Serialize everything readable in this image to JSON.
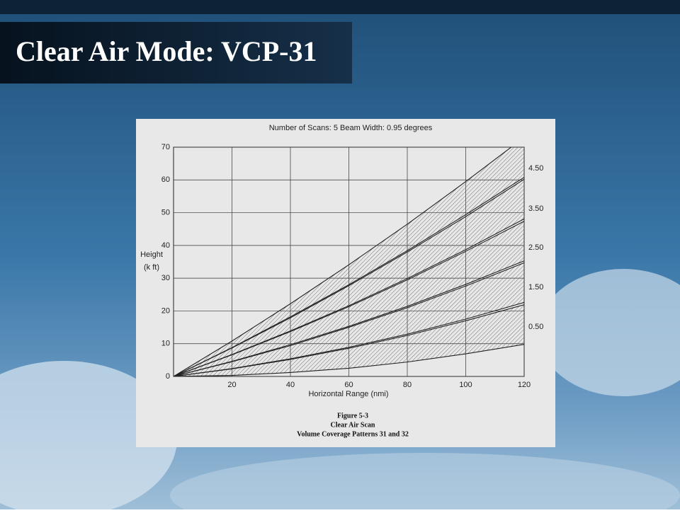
{
  "slide_title": "Clear Air Mode: VCP-31",
  "chart_data": {
    "type": "band",
    "title": "Number of Scans: 5   Beam Width: 0.95 degrees",
    "xlabel": "Horizontal Range (nmi)",
    "ylabel": [
      "Height",
      "(k ft)"
    ],
    "caption": [
      "Figure 5-3",
      "Clear Air Scan",
      "Volume Coverage Patterns 31 and 32"
    ],
    "x": [
      0,
      20,
      40,
      60,
      80,
      100,
      120
    ],
    "xlim": [
      0,
      120
    ],
    "xticks": [
      20,
      40,
      60,
      80,
      100,
      120
    ],
    "ylim": [
      0,
      70
    ],
    "yticks": [
      0,
      10,
      20,
      30,
      40,
      50,
      60,
      70
    ],
    "grid": true,
    "color": "#222222",
    "series": [
      {
        "name": "0.50",
        "lower": [
          0,
          0.3,
          1.2,
          2.5,
          4.4,
          6.9,
          9.8
        ],
        "upper": [
          0,
          2.3,
          5.2,
          8.6,
          12.5,
          17.0,
          21.9
        ]
      },
      {
        "name": "1.50",
        "lower": [
          0,
          2.4,
          5.4,
          8.9,
          12.9,
          17.5,
          22.6
        ],
        "upper": [
          0,
          4.5,
          9.4,
          15.0,
          21.0,
          27.6,
          34.7
        ]
      },
      {
        "name": "2.50",
        "lower": [
          0,
          4.6,
          9.7,
          15.3,
          21.4,
          28.1,
          35.3
        ],
        "upper": [
          0,
          6.6,
          13.7,
          21.3,
          29.5,
          38.2,
          47.4
        ]
      },
      {
        "name": "3.50",
        "lower": [
          0,
          6.7,
          13.9,
          21.6,
          29.9,
          38.7,
          48.1
        ],
        "upper": [
          0,
          8.7,
          17.9,
          27.7,
          38.0,
          48.8,
          60.2
        ]
      },
      {
        "name": "4.50",
        "lower": [
          0,
          8.8,
          18.2,
          28.0,
          38.4,
          49.4,
          60.8
        ],
        "upper": [
          0,
          10.8,
          22.2,
          34.1,
          46.5,
          59.5,
          73.0
        ]
      }
    ]
  }
}
